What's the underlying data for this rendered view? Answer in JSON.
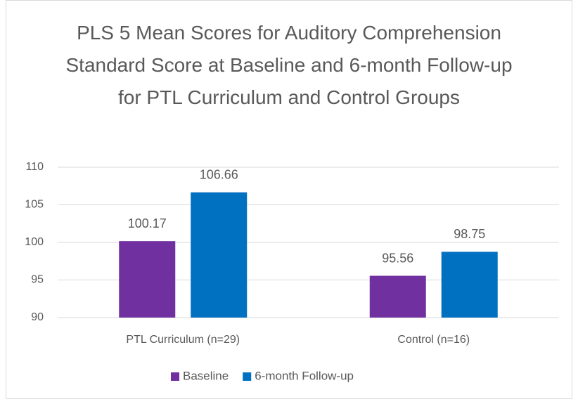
{
  "chart_data": {
    "type": "bar",
    "title": "PLS 5 Mean Scores for Auditory Comprehension Standard Score at Baseline and 6-month Follow-up for PTL Curriculum and Control Groups",
    "categories": [
      "PTL Curriculum (n=29)",
      "Control (n=16)"
    ],
    "series": [
      {
        "name": "Baseline",
        "color": "#7030a0",
        "values": [
          100.17,
          95.56
        ]
      },
      {
        "name": "6-month Follow-up",
        "color": "#0070c0",
        "values": [
          106.66,
          98.75
        ]
      }
    ],
    "ylim": [
      90,
      110
    ],
    "yticks": [
      90,
      95,
      100,
      105,
      110
    ],
    "grid": true,
    "legend": "bottom"
  }
}
